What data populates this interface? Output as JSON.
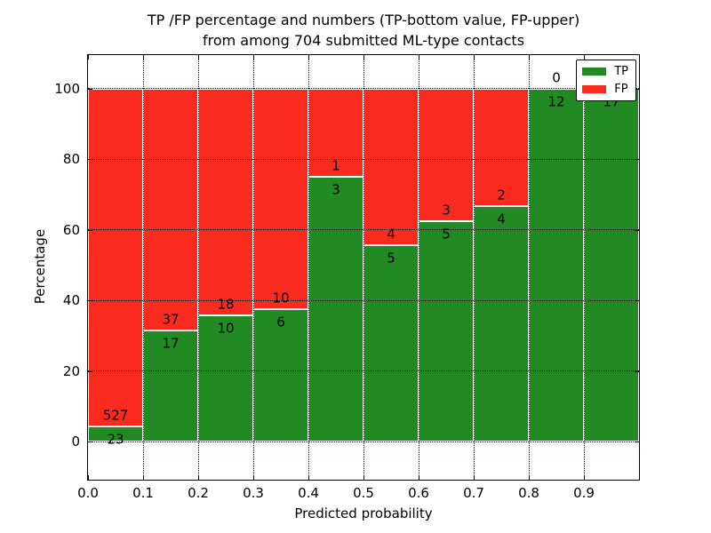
{
  "title": {
    "line1": "TP /FP percentage and numbers (TP-bottom value, FP-upper)",
    "line2": "from among 704 submitted ML-type contacts"
  },
  "chart_data": {
    "type": "bar",
    "stacked": true,
    "normalized_to_percent": true,
    "total_contacts": 704,
    "bin_edges": [
      0.0,
      0.1,
      0.2,
      0.3,
      0.4,
      0.5,
      0.6,
      0.7,
      0.8,
      0.9,
      1.0
    ],
    "categories": [
      "0.0-0.1",
      "0.1-0.2",
      "0.2-0.3",
      "0.3-0.4",
      "0.4-0.5",
      "0.5-0.6",
      "0.6-0.7",
      "0.7-0.8",
      "0.8-0.9",
      "0.9-1.0"
    ],
    "series": [
      {
        "name": "TP",
        "color": "#228a22",
        "counts": [
          23,
          17,
          10,
          6,
          3,
          5,
          5,
          4,
          12,
          17
        ],
        "percent": [
          4.18,
          31.48,
          35.71,
          37.5,
          75.0,
          55.56,
          62.5,
          66.67,
          100.0,
          100.0
        ]
      },
      {
        "name": "FP",
        "color": "#fa2a1e",
        "counts": [
          527,
          37,
          18,
          10,
          1,
          4,
          3,
          2,
          0,
          0
        ],
        "percent": [
          95.82,
          68.52,
          64.29,
          62.5,
          25.0,
          44.44,
          37.5,
          33.33,
          0.0,
          0.0
        ]
      }
    ],
    "xlabel": "Predicted probability",
    "ylabel": "Percentage",
    "yticks": [
      0,
      20,
      40,
      60,
      80,
      100
    ],
    "xtick_labels": [
      "0.0",
      "0.1",
      "0.2",
      "0.3",
      "0.4",
      "0.5",
      "0.6",
      "0.7",
      "0.8",
      "0.9"
    ],
    "xlim": [
      0.0,
      1.0
    ],
    "ylim": [
      -10.8,
      109.5
    ],
    "grid": "dotted-black-both-axes",
    "bar_edge_color": "#ffffff",
    "legend": {
      "position": "upper right",
      "entries": [
        "TP",
        "FP"
      ]
    }
  }
}
